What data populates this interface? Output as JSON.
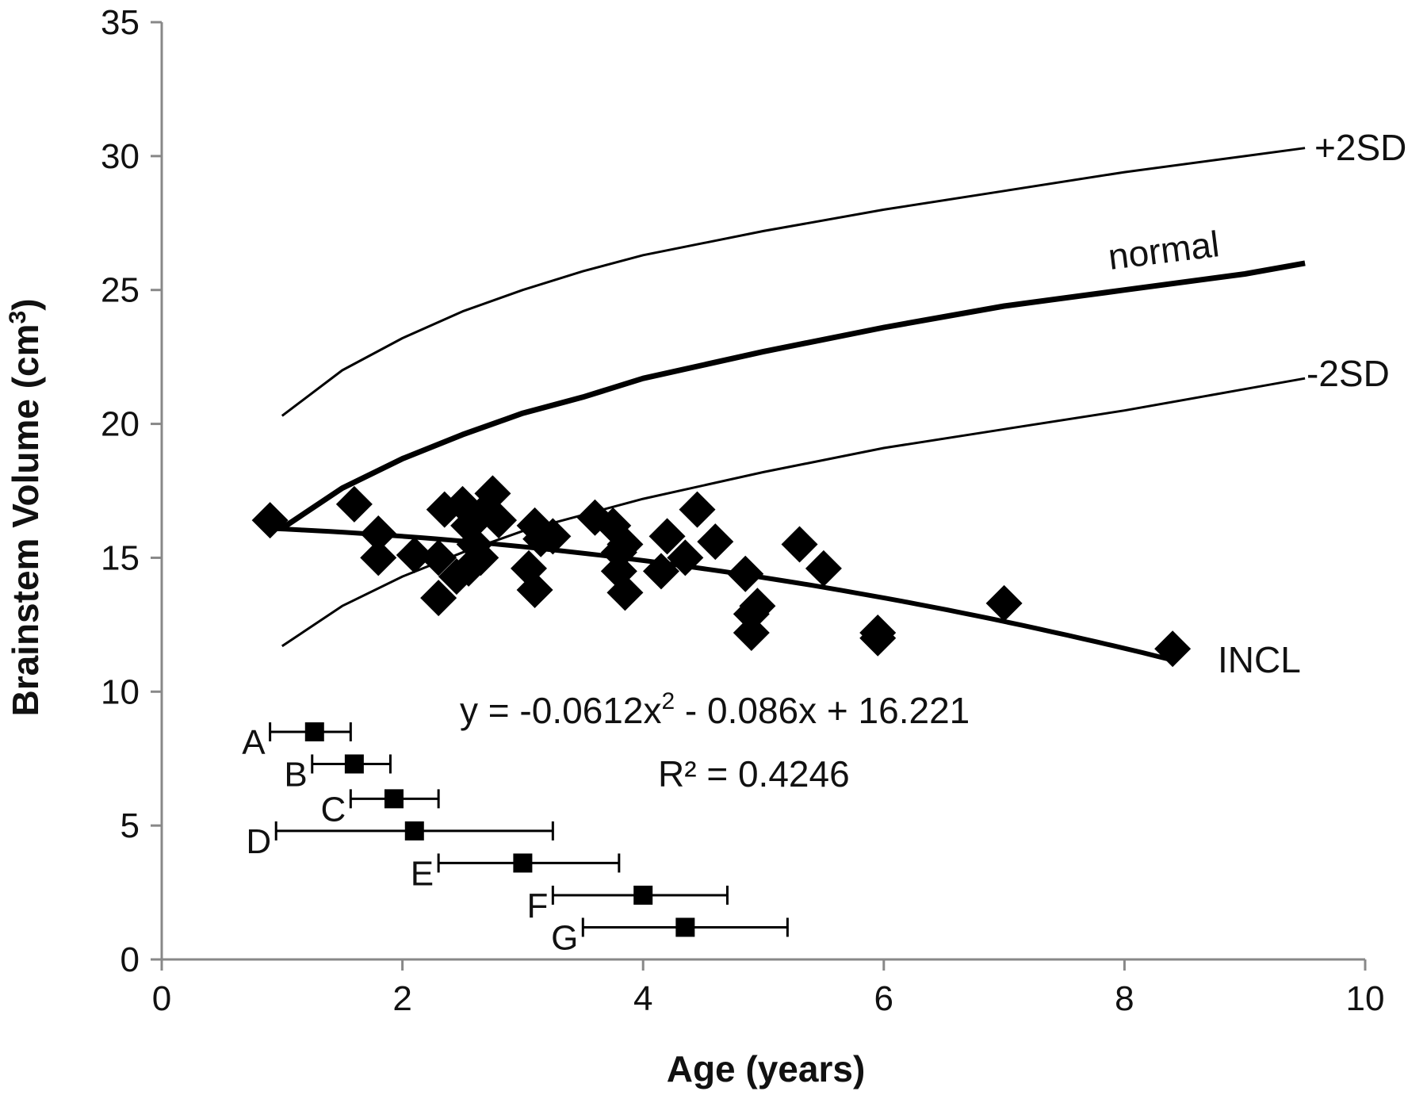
{
  "chart_data": {
    "type": "scatter",
    "xlabel": "Age (years)",
    "ylabel": "Brainstem Volume (cm",
    "ylabel_sup": "3",
    "ylabel_end": ")",
    "xlim": [
      0,
      10
    ],
    "ylim": [
      0,
      35
    ],
    "x_ticks": [
      "0",
      "2",
      "4",
      "6",
      "8",
      "10"
    ],
    "y_ticks": [
      "0",
      "5",
      "10",
      "15",
      "20",
      "25",
      "30",
      "35"
    ],
    "grid": false,
    "series": [
      {
        "name": "INCL",
        "kind": "scatter",
        "marker": "diamond",
        "points": [
          [
            0.9,
            16.4
          ],
          [
            1.6,
            17.0
          ],
          [
            1.8,
            15.9
          ],
          [
            1.8,
            15.0
          ],
          [
            2.1,
            15.1
          ],
          [
            2.3,
            13.5
          ],
          [
            2.3,
            15.0
          ],
          [
            2.35,
            16.8
          ],
          [
            2.45,
            14.3
          ],
          [
            2.5,
            17.0
          ],
          [
            2.55,
            16.2
          ],
          [
            2.55,
            14.6
          ],
          [
            2.6,
            15.5
          ],
          [
            2.65,
            15.0
          ],
          [
            2.65,
            16.6
          ],
          [
            2.75,
            17.4
          ],
          [
            2.8,
            16.4
          ],
          [
            3.05,
            14.6
          ],
          [
            3.1,
            13.8
          ],
          [
            3.1,
            16.2
          ],
          [
            3.15,
            15.7
          ],
          [
            3.25,
            15.8
          ],
          [
            3.6,
            16.5
          ],
          [
            3.75,
            16.2
          ],
          [
            3.8,
            14.5
          ],
          [
            3.8,
            15.2
          ],
          [
            3.85,
            13.7
          ],
          [
            3.85,
            15.5
          ],
          [
            4.15,
            14.5
          ],
          [
            4.2,
            15.8
          ],
          [
            4.35,
            15.0
          ],
          [
            4.45,
            16.8
          ],
          [
            4.6,
            15.6
          ],
          [
            4.85,
            14.4
          ],
          [
            4.9,
            12.9
          ],
          [
            4.9,
            12.2
          ],
          [
            4.95,
            13.2
          ],
          [
            5.3,
            15.5
          ],
          [
            5.5,
            14.6
          ],
          [
            5.95,
            12.2
          ],
          [
            5.95,
            12.0
          ],
          [
            7.0,
            13.3
          ],
          [
            8.4,
            11.6
          ]
        ]
      },
      {
        "name": "INCL",
        "kind": "trend",
        "coefficients": {
          "a": -0.0612,
          "b": -0.086,
          "c": 16.221
        },
        "x_range": [
          0.9,
          8.4
        ]
      },
      {
        "name": "normal",
        "kind": "curve",
        "x": [
          1.0,
          1.5,
          2,
          2.5,
          3,
          3.5,
          4,
          5,
          6,
          7,
          8,
          9,
          9.5
        ],
        "values": [
          16.1,
          17.6,
          18.7,
          19.6,
          20.4,
          21.0,
          21.7,
          22.7,
          23.6,
          24.4,
          25.0,
          25.6,
          26.0
        ]
      },
      {
        "name": "+2SD",
        "kind": "curve",
        "x": [
          1.0,
          1.5,
          2,
          2.5,
          3,
          3.5,
          4,
          5,
          6,
          7,
          8,
          9,
          9.5
        ],
        "values": [
          20.3,
          22.0,
          23.2,
          24.2,
          25.0,
          25.7,
          26.3,
          27.2,
          28.0,
          28.7,
          29.4,
          30.0,
          30.3
        ]
      },
      {
        "name": "-2SD",
        "kind": "curve",
        "x": [
          1.0,
          1.5,
          2,
          2.5,
          3,
          3.5,
          4,
          5,
          6,
          7,
          8,
          9,
          9.5
        ],
        "values": [
          11.7,
          13.2,
          14.3,
          15.2,
          16.0,
          16.6,
          17.2,
          18.2,
          19.1,
          19.8,
          20.5,
          21.3,
          21.7
        ]
      }
    ],
    "curve_labels": {
      "plus2sd": "+2SD",
      "normal": "normal",
      "minus2sd": "-2SD",
      "incl": "INCL"
    },
    "equation": {
      "line1_pre": "y = -0.0612x",
      "line1_sup": "2",
      "line1_post": " - 0.086x + 16.221",
      "line2": "R² = 0.4246"
    },
    "error_groups": [
      {
        "label": "A",
        "x": 1.27,
        "y": 8.5,
        "xmin": 0.9,
        "xmax": 1.57
      },
      {
        "label": "B",
        "x": 1.6,
        "y": 7.3,
        "xmin": 1.25,
        "xmax": 1.9
      },
      {
        "label": "C",
        "x": 1.93,
        "y": 6.0,
        "xmin": 1.57,
        "xmax": 2.3
      },
      {
        "label": "D",
        "x": 2.1,
        "y": 4.8,
        "xmin": 0.95,
        "xmax": 3.25
      },
      {
        "label": "E",
        "x": 3.0,
        "y": 3.6,
        "xmin": 2.3,
        "xmax": 3.8
      },
      {
        "label": "F",
        "x": 4.0,
        "y": 2.4,
        "xmin": 3.25,
        "xmax": 4.7
      },
      {
        "label": "G",
        "x": 4.35,
        "y": 1.2,
        "xmin": 3.5,
        "xmax": 5.2
      }
    ]
  }
}
